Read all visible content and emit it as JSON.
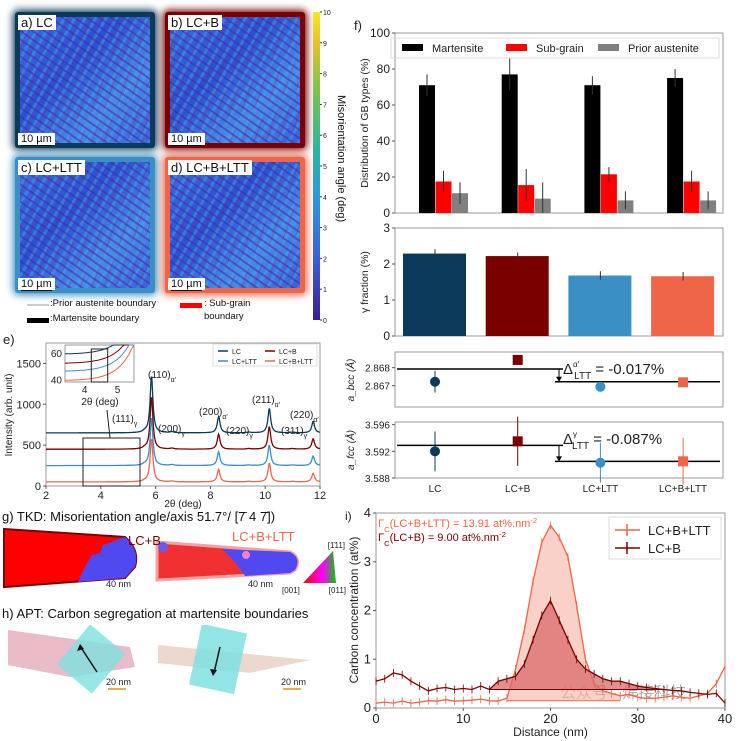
{
  "panels": {
    "a": {
      "label": "a) LC",
      "scale": "10 µm",
      "color": "#0b3a5a"
    },
    "b": {
      "label": "b) LC+B",
      "scale": "10 µm",
      "color": "#7a0000"
    },
    "c": {
      "label": "c) LC+LTT",
      "scale": "10 µm",
      "color": "#3a90c5"
    },
    "d": {
      "label": "d) LC+B+LTT",
      "scale": "10 µm",
      "color": "#ef6548"
    },
    "colorbar": {
      "label": "Misorientation angle (deg)",
      "ticks": [
        "0",
        "1",
        "2",
        "3",
        "4",
        "5",
        "6",
        "7",
        "8",
        "9",
        "10"
      ]
    },
    "legend": {
      "prior": ":Prior austenite boundary",
      "martensite": ":Martensite boundary",
      "subgrain": ": Sub-grain",
      "subgrain2": "boundary"
    },
    "f_label": "f)",
    "e_label": "e)",
    "g": {
      "title": "g) TKD:  Misorientation angle/axis 51.7°/ [7̄ 4 7̄])",
      "left": "LC+B",
      "right": "LC+B+LTT",
      "scale_left": "40 nm",
      "scale_right": "40 nm",
      "ipf_top": "[1̄11]",
      "ipf_left": "[001]",
      "ipf_right": "[011]"
    },
    "h": {
      "title": "h) APT: Carbon segregation at martensite boundaries",
      "scale_left": "20 nm",
      "scale_right": "20 nm"
    },
    "i_label": "i)",
    "watermark": "公众号 · 焊接科技"
  },
  "chart_data": [
    {
      "id": "f_gb",
      "type": "bar",
      "categories": [
        "LC",
        "LC+B",
        "LC+LTT",
        "LC+B+LTT"
      ],
      "ylabel": "Distribution of GB types (%)",
      "ylim": [
        0,
        100
      ],
      "yticks": [
        "0",
        "20",
        "40",
        "60",
        "80",
        "100"
      ],
      "series": [
        {
          "name": "Martensite",
          "color": "#000000",
          "values": [
            71,
            77,
            71,
            75
          ],
          "errors": [
            6,
            9,
            5,
            5
          ]
        },
        {
          "name": "Sub-grain",
          "color": "#ff0000",
          "values": [
            17.5,
            15.5,
            21.5,
            17.5
          ],
          "errors": [
            6,
            9,
            4,
            6
          ]
        },
        {
          "name": "Prior austenite",
          "color": "#808080",
          "values": [
            11,
            8,
            7,
            7
          ],
          "errors": [
            6,
            9,
            5,
            5
          ]
        }
      ],
      "legend": "top"
    },
    {
      "id": "f_gamma",
      "type": "bar",
      "categories": [
        "LC",
        "LC+B",
        "LC+LTT",
        "LC+B+LTT"
      ],
      "ylabel": "γ fraction (%)",
      "ylim": [
        0,
        3
      ],
      "yticks": [
        "0",
        "1",
        "2",
        "3"
      ],
      "values": [
        2.29,
        2.22,
        1.68,
        1.66
      ],
      "errors": [
        0.12,
        0.1,
        0.12,
        0.12
      ],
      "colors": [
        "#0b3a5a",
        "#7a0000",
        "#3a90c5",
        "#ef6548"
      ]
    },
    {
      "id": "f_abcc",
      "type": "scatter",
      "categories": [
        "LC",
        "LC+B",
        "LC+LTT",
        "LC+B+LTT"
      ],
      "ylabel": "a_bcc (Å)",
      "ylim": [
        2.86582,
        2.86887
      ],
      "yticks": [
        "2.867",
        "2.868"
      ],
      "values": [
        2.86722,
        2.86843,
        2.86694,
        2.86719
      ],
      "errors": [
        0.0006,
        0.0001,
        0.00015,
        0.00012
      ],
      "markers": [
        "circle",
        "square",
        "circle",
        "square"
      ],
      "colors": [
        "#0b3a5a",
        "#7a0000",
        "#3a90c5",
        "#ef6548"
      ],
      "ref_lines": [
        2.86793,
        2.86722
      ],
      "annotation": "Δ",
      "annotation_sup": "α′",
      "annotation_sub": "LTT",
      "annotation_value": " = -0.017%"
    },
    {
      "id": "f_afcc",
      "type": "scatter",
      "categories": [
        "LC",
        "LC+B",
        "LC+LTT",
        "LC+B+LTT"
      ],
      "ylabel": "a_fcc (Å)",
      "ylim": [
        3.588,
        3.5964
      ],
      "yticks": [
        "3.588",
        "3.592",
        "3.596"
      ],
      "values": [
        3.592,
        3.5935,
        3.5903,
        3.5905
      ],
      "errors": [
        0.003,
        0.0037,
        0.003,
        0.0035
      ],
      "markers": [
        "circle",
        "square",
        "circle",
        "square"
      ],
      "colors": [
        "#0b3a5a",
        "#7a0000",
        "#3a90c5",
        "#ef6548"
      ],
      "ref_lines": [
        3.5929,
        3.5905
      ],
      "annotation": "Δ",
      "annotation_sup": "γ",
      "annotation_sub": "LTT",
      "annotation_value": " = -0.087%"
    },
    {
      "id": "e_xrd",
      "type": "line",
      "xlabel": "2θ (deg)",
      "ylabel": "Intensity (arb. unit)",
      "xlim": [
        2,
        12
      ],
      "ylim": [
        0,
        1750
      ],
      "xticks": [
        "2",
        "4",
        "6",
        "8",
        "10",
        "12"
      ],
      "yticks": [
        "0",
        "500",
        "1000",
        "1500"
      ],
      "series": [
        {
          "name": "LC",
          "color": "#0b3a5a",
          "offset": 650
        },
        {
          "name": "LC+B",
          "color": "#7a0000",
          "offset": 450
        },
        {
          "name": "LC+LTT",
          "color": "#3a90c5",
          "offset": 250
        },
        {
          "name": "LC+B+LTT",
          "color": "#ef6548",
          "offset": 50
        }
      ],
      "peaks": [
        {
          "pos": 5.85,
          "height": 700,
          "label": "(110)",
          "sub": "α′"
        },
        {
          "pos": 8.3,
          "height": 200,
          "label": "(200)",
          "sub": "α′"
        },
        {
          "pos": 10.15,
          "height": 300,
          "label": "(211)",
          "sub": "α′"
        },
        {
          "pos": 11.75,
          "height": 140,
          "label": "(220)",
          "sub": "α′"
        },
        {
          "pos": 5.6,
          "height": 15,
          "label": "(111)",
          "sub": "γ"
        },
        {
          "pos": 6.6,
          "height": 12,
          "label": "(200)",
          "sub": "γ"
        },
        {
          "pos": 9.4,
          "height": 8,
          "label": "(220)",
          "sub": "γ"
        },
        {
          "pos": 11.0,
          "height": 8,
          "label": "(311)",
          "sub": "γ"
        }
      ],
      "inset": {
        "xlim": [
          3.4,
          5.5
        ],
        "ylim": [
          38,
          66
        ],
        "xticks": [
          "4",
          "5"
        ],
        "yticks": [
          "40",
          "60"
        ],
        "xlabel": "2θ (deg)"
      }
    },
    {
      "id": "i_carbon",
      "type": "line",
      "xlabel": "Distance (nm)",
      "ylabel": "Carbon concentration (at%)",
      "xlim": [
        0,
        40
      ],
      "ylim": [
        0,
        4
      ],
      "xticks": [
        "0",
        "10",
        "20",
        "30",
        "40"
      ],
      "yticks": [
        "0",
        "1",
        "2",
        "3",
        "4"
      ],
      "x": [
        0,
        1,
        2,
        3,
        4,
        5,
        6,
        7,
        8,
        9,
        10,
        11,
        12,
        13,
        14,
        15,
        16,
        17,
        18,
        19,
        20,
        21,
        22,
        23,
        24,
        25,
        26,
        27,
        28,
        29,
        30,
        31,
        32,
        33,
        34,
        35,
        36,
        37,
        38,
        39,
        40
      ],
      "series": [
        {
          "name": "LC+B+LTT",
          "color": "#ef6548",
          "fill": "#f6b2a4",
          "gamma": "Γ",
          "gamma_sub": "C",
          "gamma_text": "(LC+B+LTT) = 13.91 at%.nm",
          "gamma_sup": "-2",
          "baseline": 0.15,
          "values": [
            0.1,
            0.12,
            0.1,
            0.14,
            0.1,
            0.12,
            0.15,
            0.14,
            0.17,
            0.14,
            0.15,
            0.16,
            0.18,
            0.15,
            0.14,
            0.2,
            0.8,
            1.6,
            2.6,
            3.4,
            3.75,
            3.5,
            3.1,
            2.1,
            1.0,
            0.5,
            0.35,
            0.3,
            0.25,
            0.28,
            0.22,
            0.2,
            0.2,
            0.22,
            0.25,
            0.22,
            0.2,
            0.25,
            0.3,
            0.5,
            0.85
          ]
        },
        {
          "name": "LC+B",
          "color": "#7a0000",
          "fill": "#d96a6a",
          "gamma": "Γ",
          "gamma_sub": "C",
          "gamma_text": "(LC+B) = 9.00 at%.nm",
          "gamma_sup": "-2",
          "baseline": 0.38,
          "values": [
            0.55,
            0.6,
            0.72,
            0.68,
            0.55,
            0.45,
            0.35,
            0.4,
            0.42,
            0.38,
            0.4,
            0.38,
            0.45,
            0.38,
            0.55,
            0.6,
            0.65,
            0.9,
            1.4,
            1.9,
            2.2,
            1.8,
            1.4,
            1.0,
            0.8,
            0.7,
            0.6,
            0.55,
            0.55,
            0.5,
            0.45,
            0.42,
            0.4,
            0.38,
            0.36,
            0.35,
            0.32,
            0.3,
            0.28,
            0.3,
            0.1
          ]
        }
      ],
      "legend": "top-right"
    }
  ]
}
